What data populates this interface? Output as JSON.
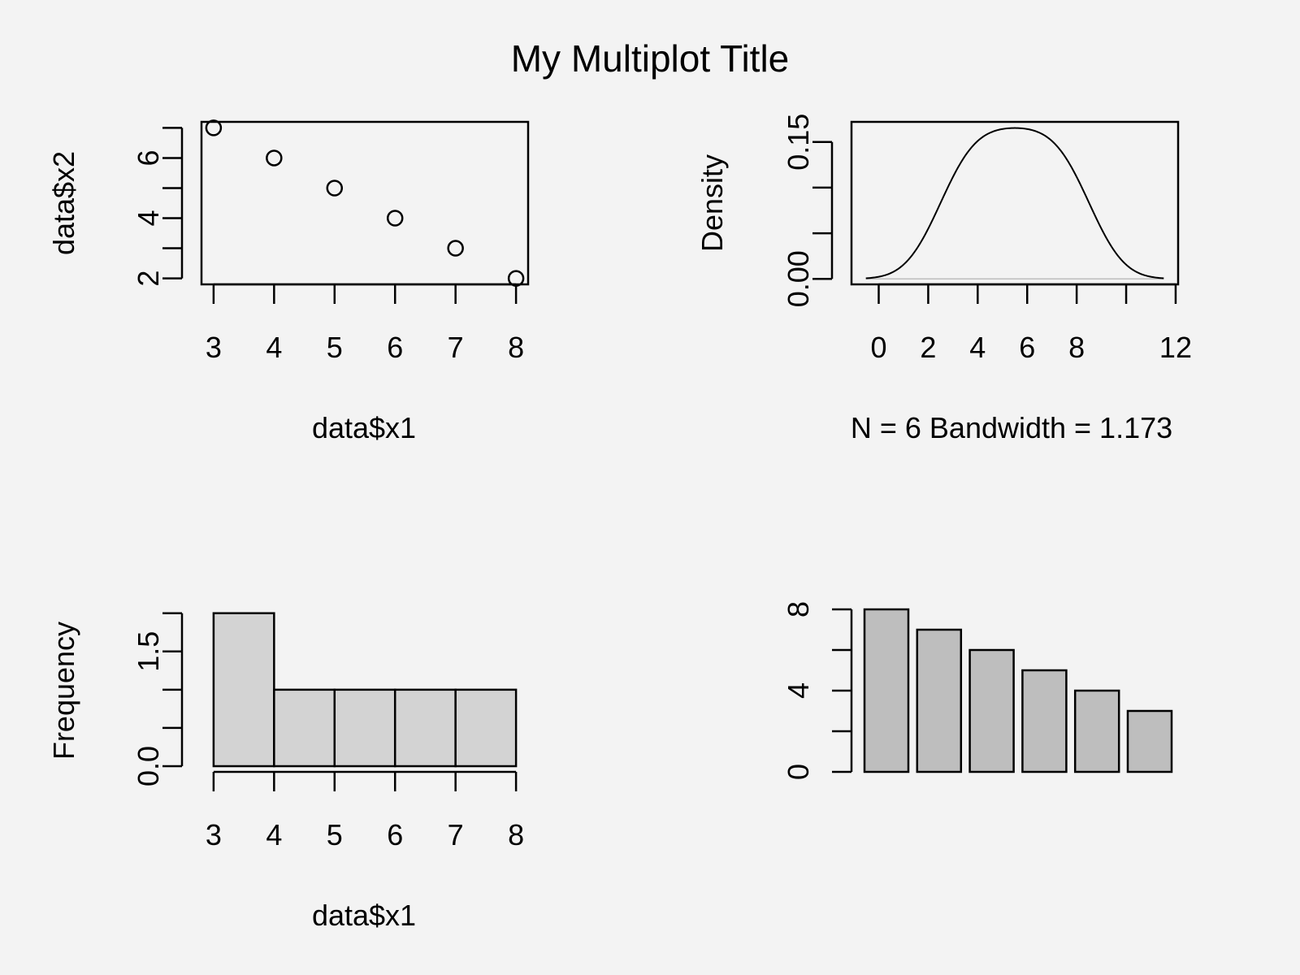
{
  "figure": {
    "title": "My Multiplot Title",
    "background": "#f3f3f3"
  },
  "chart_data": [
    {
      "type": "scatter",
      "xlabel": "data$x1",
      "ylabel": "data$x2",
      "x": [
        3,
        4,
        5,
        6,
        7,
        8
      ],
      "y": [
        7,
        6,
        5,
        4,
        3,
        2
      ],
      "xlim": [
        2.8,
        8.2
      ],
      "ylim": [
        1.8,
        7.2
      ],
      "xticks": [
        3,
        4,
        5,
        6,
        7,
        8
      ],
      "yticks": [
        2,
        3,
        4,
        5,
        6,
        7
      ],
      "ytick_labels": [
        "2",
        "",
        "4",
        "",
        "6",
        ""
      ],
      "marker": "open-circle"
    },
    {
      "type": "line",
      "subtype": "density",
      "xlabel": "N = 6   Bandwidth = 1.173",
      "ylabel": "Density",
      "mean": 5.5,
      "bandwidth": 1.173,
      "n": 6,
      "observations": [
        3,
        4,
        5,
        6,
        7,
        8
      ],
      "xlim": [
        -1.1,
        12.1
      ],
      "ylim": [
        -0.006,
        0.172
      ],
      "xticks": [
        0,
        2,
        4,
        6,
        8,
        10,
        12
      ],
      "xtick_labels": [
        "0",
        "2",
        "4",
        "6",
        "8",
        "",
        "12"
      ],
      "yticks": [
        0,
        0.05,
        0.1,
        0.15
      ],
      "ytick_labels": [
        "0.00",
        "",
        "",
        "0.15"
      ]
    },
    {
      "type": "bar",
      "subtype": "histogram",
      "xlabel": "data$x1",
      "ylabel": "Frequency",
      "bins": [
        [
          3,
          4
        ],
        [
          4,
          5
        ],
        [
          5,
          6
        ],
        [
          6,
          7
        ],
        [
          7,
          8
        ]
      ],
      "values": [
        2,
        1,
        1,
        1,
        1
      ],
      "xlim": [
        2.8,
        8.2
      ],
      "ylim": [
        0,
        2.05
      ],
      "xticks": [
        3,
        4,
        5,
        6,
        7,
        8
      ],
      "yticks": [
        0,
        0.5,
        1,
        1.5,
        2
      ],
      "ytick_labels": [
        "0.0",
        "",
        "",
        "1.5",
        ""
      ],
      "bar_color": "#d3d3d3"
    },
    {
      "type": "bar",
      "xlabel": "",
      "ylabel": "",
      "values": [
        8,
        7,
        6,
        5,
        4,
        3
      ],
      "ylim": [
        0,
        8
      ],
      "yticks": [
        0,
        2,
        4,
        6,
        8
      ],
      "ytick_labels": [
        "0",
        "",
        "4",
        "",
        "8"
      ],
      "bar_color": "#bebebe"
    }
  ]
}
